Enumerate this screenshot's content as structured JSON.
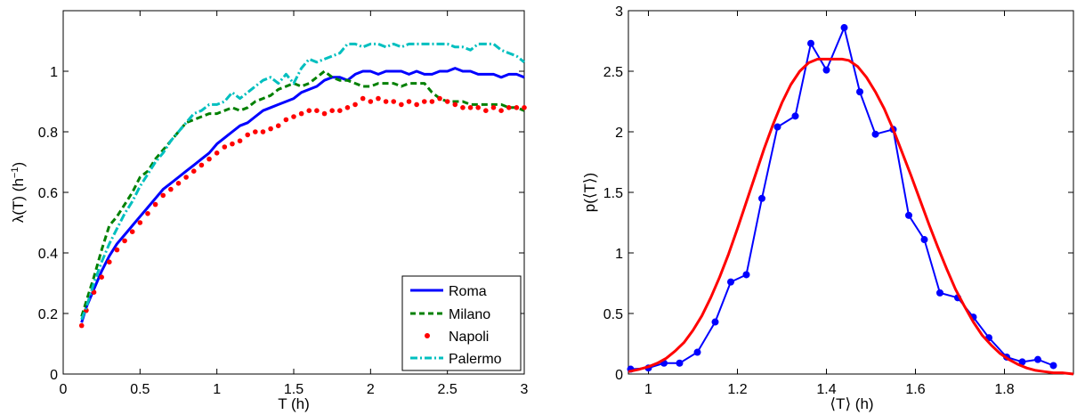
{
  "chart_data": [
    {
      "type": "line",
      "xlabel": "T (h)",
      "ylabel": "λ(T) (h",
      "ylabel_sup": "−1",
      "ylabel_end": ")",
      "xlim": [
        0,
        3
      ],
      "ylim": [
        0,
        1.2
      ],
      "xticks": [
        "0",
        "0.5",
        "1",
        "1.5",
        "2",
        "2.5",
        "3"
      ],
      "yticks": [
        "0",
        "0.2",
        "0.4",
        "0.6",
        "0.8",
        "1"
      ],
      "grid": false,
      "legend_position": "bottom-right",
      "series": [
        {
          "name": "Roma",
          "color": "#0000ff",
          "style": "solid",
          "x": [
            0.12,
            0.15,
            0.2,
            0.25,
            0.3,
            0.35,
            0.4,
            0.45,
            0.5,
            0.55,
            0.6,
            0.65,
            0.7,
            0.75,
            0.8,
            0.85,
            0.9,
            0.95,
            1.0,
            1.05,
            1.1,
            1.15,
            1.2,
            1.25,
            1.3,
            1.35,
            1.4,
            1.45,
            1.5,
            1.55,
            1.6,
            1.65,
            1.7,
            1.75,
            1.8,
            1.85,
            1.9,
            1.95,
            2.0,
            2.05,
            2.1,
            2.15,
            2.2,
            2.25,
            2.3,
            2.35,
            2.4,
            2.45,
            2.5,
            2.55,
            2.6,
            2.65,
            2.7,
            2.75,
            2.8,
            2.85,
            2.9,
            2.95,
            3.0
          ],
          "y": [
            0.17,
            0.22,
            0.28,
            0.34,
            0.39,
            0.43,
            0.46,
            0.49,
            0.52,
            0.55,
            0.58,
            0.61,
            0.63,
            0.65,
            0.67,
            0.69,
            0.71,
            0.73,
            0.76,
            0.78,
            0.8,
            0.82,
            0.83,
            0.85,
            0.87,
            0.88,
            0.89,
            0.9,
            0.91,
            0.93,
            0.94,
            0.95,
            0.97,
            0.98,
            0.98,
            0.97,
            0.99,
            1.0,
            1.0,
            0.99,
            1.0,
            1.0,
            1.0,
            0.99,
            1.0,
            0.99,
            0.99,
            1.0,
            1.0,
            1.01,
            1.0,
            1.0,
            0.99,
            0.99,
            0.99,
            0.98,
            0.99,
            0.99,
            0.98
          ]
        },
        {
          "name": "Milano",
          "color": "#008000",
          "style": "dashed",
          "x": [
            0.12,
            0.15,
            0.2,
            0.25,
            0.3,
            0.35,
            0.4,
            0.45,
            0.5,
            0.55,
            0.6,
            0.65,
            0.7,
            0.75,
            0.8,
            0.85,
            0.9,
            0.95,
            1.0,
            1.05,
            1.1,
            1.15,
            1.2,
            1.25,
            1.3,
            1.35,
            1.4,
            1.45,
            1.5,
            1.55,
            1.6,
            1.65,
            1.7,
            1.75,
            1.8,
            1.85,
            1.9,
            1.95,
            2.0,
            2.05,
            2.1,
            2.15,
            2.2,
            2.25,
            2.3,
            2.35,
            2.4,
            2.45,
            2.5,
            2.55,
            2.6,
            2.65,
            2.7,
            2.75,
            2.8,
            2.85,
            2.9,
            2.95,
            3.0
          ],
          "y": [
            0.19,
            0.24,
            0.32,
            0.41,
            0.49,
            0.52,
            0.56,
            0.6,
            0.65,
            0.67,
            0.71,
            0.74,
            0.77,
            0.8,
            0.83,
            0.84,
            0.85,
            0.86,
            0.86,
            0.87,
            0.88,
            0.87,
            0.88,
            0.9,
            0.91,
            0.92,
            0.94,
            0.95,
            0.96,
            0.95,
            0.96,
            0.98,
            1.0,
            0.98,
            0.97,
            0.97,
            0.96,
            0.95,
            0.95,
            0.96,
            0.96,
            0.96,
            0.95,
            0.96,
            0.96,
            0.96,
            0.93,
            0.91,
            0.9,
            0.9,
            0.9,
            0.89,
            0.89,
            0.89,
            0.89,
            0.89,
            0.88,
            0.88,
            0.87
          ]
        },
        {
          "name": "Napoli",
          "color": "#ff0000",
          "style": "dotted",
          "x": [
            0.12,
            0.15,
            0.2,
            0.25,
            0.3,
            0.35,
            0.4,
            0.45,
            0.5,
            0.55,
            0.6,
            0.65,
            0.7,
            0.75,
            0.8,
            0.85,
            0.9,
            0.95,
            1.0,
            1.05,
            1.1,
            1.15,
            1.2,
            1.25,
            1.3,
            1.35,
            1.4,
            1.45,
            1.5,
            1.55,
            1.6,
            1.65,
            1.7,
            1.75,
            1.8,
            1.85,
            1.9,
            1.95,
            2.0,
            2.05,
            2.1,
            2.15,
            2.2,
            2.25,
            2.3,
            2.35,
            2.4,
            2.45,
            2.5,
            2.55,
            2.6,
            2.65,
            2.7,
            2.75,
            2.8,
            2.85,
            2.9,
            2.95,
            3.0
          ],
          "y": [
            0.16,
            0.21,
            0.27,
            0.32,
            0.37,
            0.41,
            0.44,
            0.47,
            0.5,
            0.53,
            0.56,
            0.59,
            0.61,
            0.63,
            0.65,
            0.67,
            0.69,
            0.71,
            0.73,
            0.75,
            0.76,
            0.77,
            0.79,
            0.8,
            0.8,
            0.81,
            0.82,
            0.84,
            0.85,
            0.86,
            0.87,
            0.87,
            0.86,
            0.87,
            0.87,
            0.88,
            0.89,
            0.91,
            0.9,
            0.91,
            0.9,
            0.9,
            0.89,
            0.9,
            0.89,
            0.9,
            0.9,
            0.91,
            0.9,
            0.89,
            0.88,
            0.88,
            0.88,
            0.87,
            0.88,
            0.87,
            0.88,
            0.88,
            0.88
          ]
        },
        {
          "name": "Palermo",
          "color": "#00bfbf",
          "style": "dashdot",
          "x": [
            0.12,
            0.15,
            0.2,
            0.25,
            0.3,
            0.35,
            0.4,
            0.45,
            0.5,
            0.55,
            0.6,
            0.65,
            0.7,
            0.75,
            0.8,
            0.85,
            0.9,
            0.95,
            1.0,
            1.05,
            1.1,
            1.15,
            1.2,
            1.25,
            1.3,
            1.35,
            1.4,
            1.45,
            1.5,
            1.55,
            1.6,
            1.65,
            1.7,
            1.75,
            1.8,
            1.85,
            1.9,
            1.95,
            2.0,
            2.05,
            2.1,
            2.15,
            2.2,
            2.25,
            2.3,
            2.35,
            2.4,
            2.45,
            2.5,
            2.55,
            2.6,
            2.65,
            2.7,
            2.75,
            2.8,
            2.85,
            2.9,
            2.95,
            3.0
          ],
          "y": [
            0.18,
            0.22,
            0.3,
            0.37,
            0.43,
            0.48,
            0.53,
            0.57,
            0.62,
            0.66,
            0.7,
            0.73,
            0.77,
            0.8,
            0.83,
            0.86,
            0.87,
            0.89,
            0.89,
            0.9,
            0.93,
            0.91,
            0.93,
            0.95,
            0.97,
            0.98,
            0.96,
            0.99,
            0.96,
            1.01,
            1.04,
            1.03,
            1.04,
            1.05,
            1.06,
            1.09,
            1.09,
            1.08,
            1.09,
            1.09,
            1.08,
            1.09,
            1.08,
            1.09,
            1.09,
            1.09,
            1.09,
            1.09,
            1.09,
            1.08,
            1.08,
            1.07,
            1.09,
            1.09,
            1.09,
            1.07,
            1.06,
            1.05,
            1.03
          ]
        }
      ]
    },
    {
      "type": "line",
      "xlabel": "⟨T⟩ (h)",
      "ylabel": "p(⟨T⟩)",
      "xlim": [
        0.955,
        1.955
      ],
      "ylim": [
        0,
        3
      ],
      "xticks": [
        "1",
        "1.2",
        "1.4",
        "1.6",
        "1.8"
      ],
      "yticks": [
        "0",
        "0.5",
        "1",
        "1.5",
        "2",
        "2.5",
        "3"
      ],
      "grid": false,
      "series": [
        {
          "name": "",
          "color": "#0000ff",
          "style": "solid-markers",
          "x": [
            0.96,
            1.0,
            1.035,
            1.07,
            1.11,
            1.15,
            1.185,
            1.22,
            1.255,
            1.29,
            1.33,
            1.365,
            1.4,
            1.44,
            1.475,
            1.51,
            1.55,
            1.585,
            1.62,
            1.655,
            1.695,
            1.73,
            1.765,
            1.805,
            1.84,
            1.875,
            1.91
          ],
          "y": [
            0.04,
            0.05,
            0.09,
            0.09,
            0.18,
            0.43,
            0.76,
            0.82,
            1.45,
            2.04,
            2.13,
            2.73,
            2.51,
            2.86,
            2.33,
            1.98,
            2.02,
            1.31,
            1.11,
            0.67,
            0.63,
            0.47,
            0.3,
            0.14,
            0.1,
            0.12,
            0.07
          ]
        },
        {
          "name": "",
          "color": "#ff0000",
          "style": "solid",
          "x": [
            0.955,
            0.98,
            1.0,
            1.02,
            1.04,
            1.06,
            1.08,
            1.1,
            1.12,
            1.14,
            1.16,
            1.18,
            1.2,
            1.22,
            1.24,
            1.26,
            1.28,
            1.3,
            1.32,
            1.34,
            1.36,
            1.38,
            1.4,
            1.42,
            1.435,
            1.45,
            1.47,
            1.49,
            1.51,
            1.53,
            1.55,
            1.57,
            1.59,
            1.61,
            1.63,
            1.65,
            1.67,
            1.69,
            1.71,
            1.73,
            1.75,
            1.77,
            1.79,
            1.81,
            1.83,
            1.85,
            1.87,
            1.89,
            1.91,
            1.93,
            1.955
          ],
          "y": [
            0.02,
            0.04,
            0.06,
            0.09,
            0.13,
            0.19,
            0.26,
            0.36,
            0.48,
            0.63,
            0.8,
            0.99,
            1.2,
            1.42,
            1.64,
            1.86,
            2.06,
            2.24,
            2.39,
            2.5,
            2.57,
            2.6,
            2.6,
            2.6,
            2.6,
            2.59,
            2.54,
            2.45,
            2.33,
            2.19,
            2.02,
            1.83,
            1.64,
            1.44,
            1.24,
            1.05,
            0.87,
            0.7,
            0.56,
            0.43,
            0.32,
            0.24,
            0.17,
            0.12,
            0.08,
            0.05,
            0.03,
            0.02,
            0.01,
            0.01,
            0.0
          ]
        }
      ]
    }
  ]
}
